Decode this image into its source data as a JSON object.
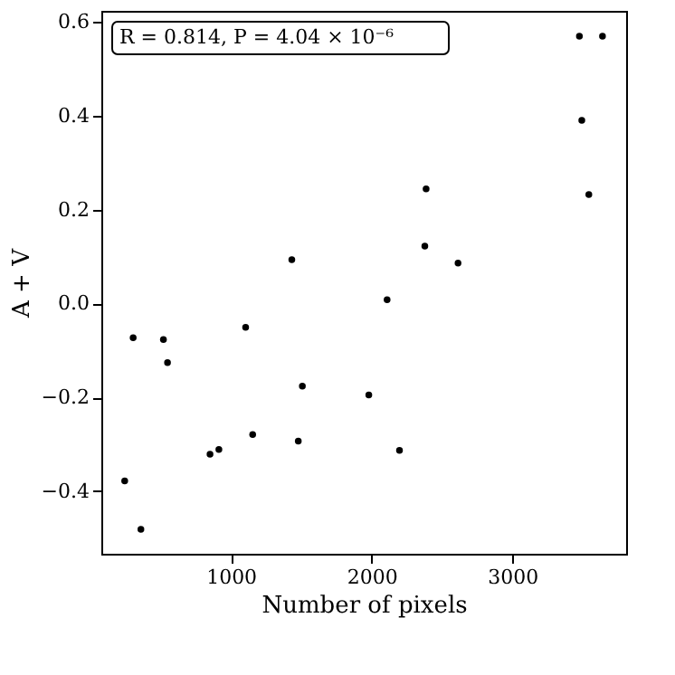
{
  "chart_data": {
    "type": "scatter",
    "xlabel": "Number of pixels",
    "ylabel": "A + V",
    "x": [
      306,
      246,
      361,
      521,
      550,
      852,
      915,
      1105,
      1155,
      1479,
      1508,
      1980,
      2110,
      2198,
      1433,
      2387,
      2378,
      2614,
      3476,
      3640,
      3493,
      3543
    ],
    "series": [
      {
        "color": "#000000",
        "values": [
          -0.073,
          -0.378,
          -0.481,
          -0.077,
          -0.126,
          -0.321,
          -0.311,
          -0.051,
          -0.279,
          -0.293,
          -0.176,
          -0.195,
          0.008,
          -0.313,
          0.093,
          0.244,
          0.122,
          0.086,
          0.569,
          0.569,
          0.39,
          0.232
        ]
      }
    ],
    "xlim": [
      80,
      3808
    ],
    "ylim": [
      -0.533,
      0.623
    ],
    "xticks": [
      1000,
      2000,
      3000
    ],
    "yticks": [
      -0.4,
      -0.2,
      {
        "value": 0,
        "label": "0.0"
      },
      0.2,
      0.4,
      0.6
    ],
    "marker": "circle",
    "grid": false,
    "annotations": [
      "R = 0.814, P = 4.04 × 10⁻⁶"
    ]
  }
}
